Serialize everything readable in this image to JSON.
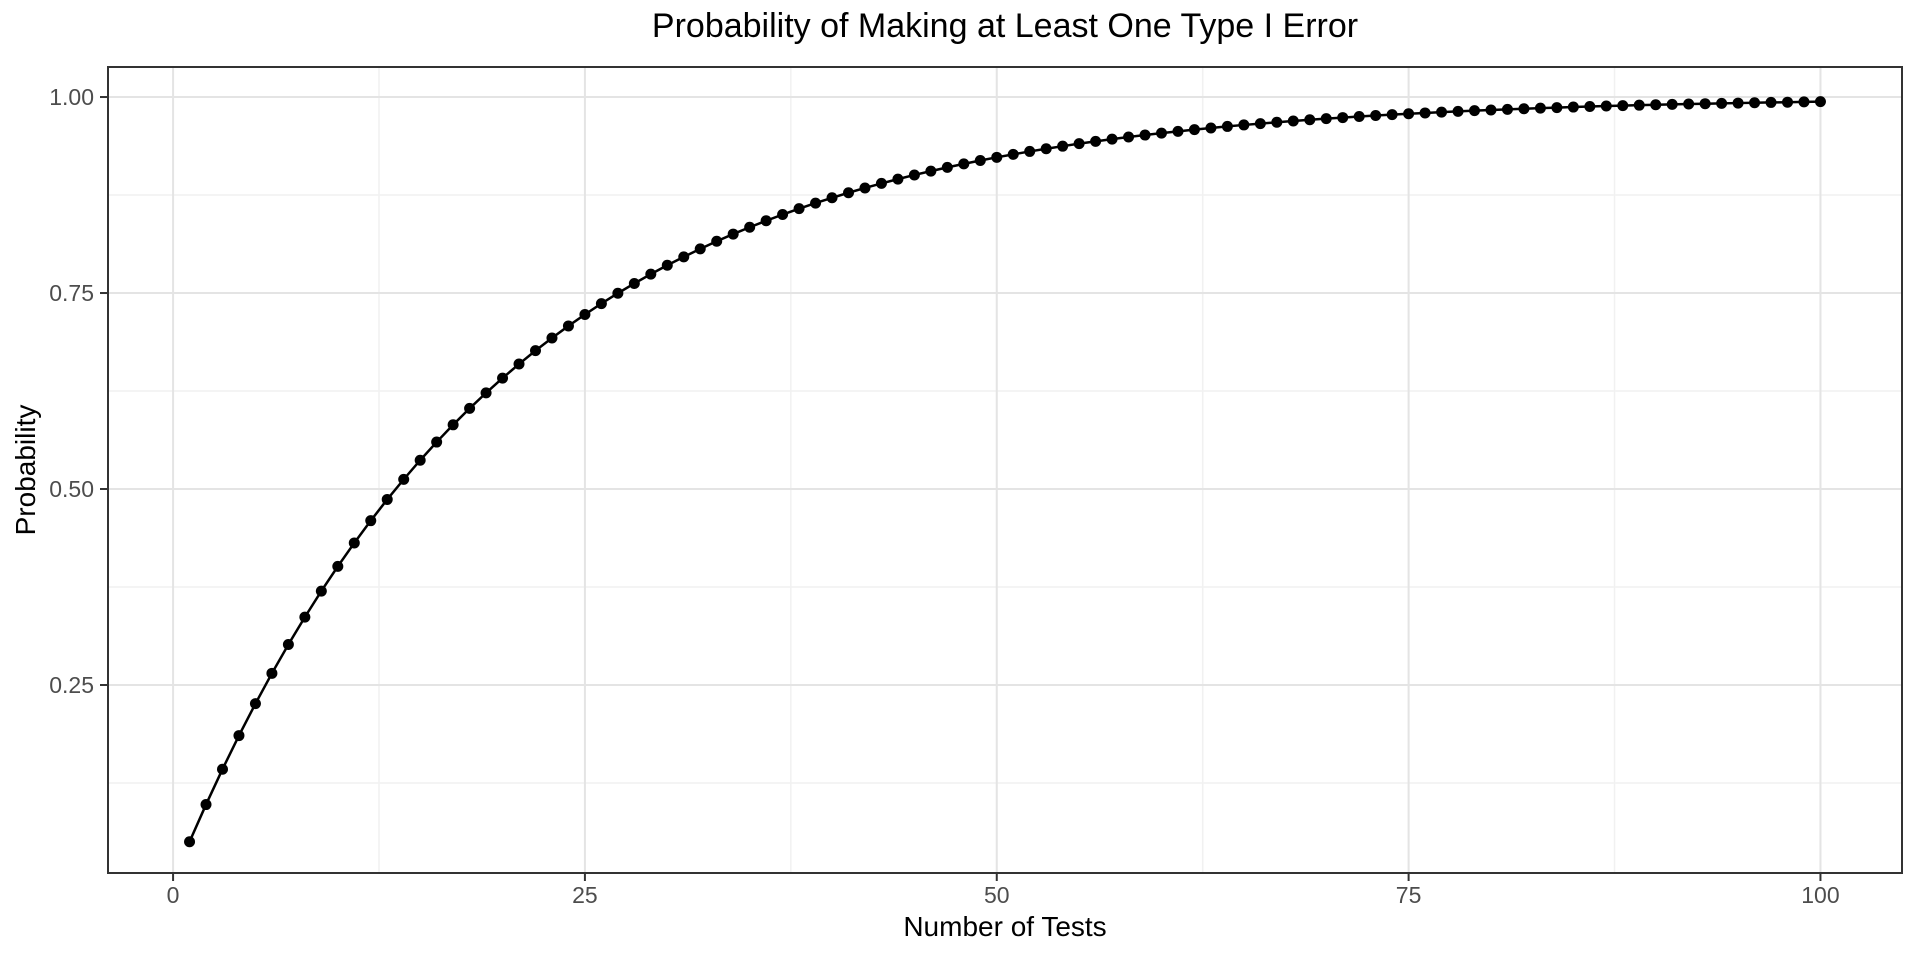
{
  "page": {
    "background_color": "#FFFFFF"
  },
  "chart_data": {
    "type": "line",
    "title": "Probability of Making at Least One Type I Error",
    "xlabel": "Number of Tests",
    "ylabel": "Probability",
    "legend": "none",
    "grid": {
      "major": true,
      "minor": true
    },
    "x_axis": {
      "ticks": [
        0,
        25,
        50,
        75,
        100
      ],
      "tick_labels": [
        "0",
        "25",
        "50",
        "75",
        "100"
      ],
      "minor_gridlines": [
        12.5,
        37.5,
        62.5,
        87.5
      ],
      "range": [
        -3.95,
        104.95
      ]
    },
    "y_axis": {
      "ticks": [
        0.25,
        0.5,
        0.75,
        1.0
      ],
      "tick_labels": [
        "0.25",
        "0.50",
        "0.75",
        "1.00"
      ],
      "minor_gridlines": [
        0.125,
        0.375,
        0.625,
        0.875
      ],
      "range": [
        0.0102,
        1.0383
      ]
    },
    "series": [
      {
        "name": "series-1",
        "marker": "filled-circle",
        "x": [
          1,
          2,
          3,
          4,
          5,
          6,
          7,
          8,
          9,
          10,
          11,
          12,
          13,
          14,
          15,
          16,
          17,
          18,
          19,
          20,
          21,
          22,
          23,
          24,
          25,
          26,
          27,
          28,
          29,
          30,
          31,
          32,
          33,
          34,
          35,
          36,
          37,
          38,
          39,
          40,
          41,
          42,
          43,
          44,
          45,
          46,
          47,
          48,
          49,
          50,
          51,
          52,
          53,
          54,
          55,
          56,
          57,
          58,
          59,
          60,
          61,
          62,
          63,
          64,
          65,
          66,
          67,
          68,
          69,
          70,
          71,
          72,
          73,
          74,
          75,
          76,
          77,
          78,
          79,
          80,
          81,
          82,
          83,
          84,
          85,
          86,
          87,
          88,
          89,
          90,
          91,
          92,
          93,
          94,
          95,
          96,
          97,
          98,
          99,
          100
        ],
        "y": [
          0.05,
          0.0975,
          0.1426,
          0.1855,
          0.2262,
          0.2649,
          0.3017,
          0.3366,
          0.3698,
          0.4013,
          0.4312,
          0.4596,
          0.4867,
          0.5123,
          0.5367,
          0.5599,
          0.5819,
          0.6028,
          0.6226,
          0.6415,
          0.6594,
          0.6765,
          0.6926,
          0.708,
          0.7226,
          0.7365,
          0.7497,
          0.7622,
          0.7741,
          0.7854,
          0.7961,
          0.8063,
          0.816,
          0.8252,
          0.8339,
          0.8422,
          0.8501,
          0.8576,
          0.8647,
          0.8715,
          0.8779,
          0.884,
          0.8898,
          0.8953,
          0.9006,
          0.9055,
          0.9103,
          0.9147,
          0.919,
          0.9231,
          0.9269,
          0.9306,
          0.934,
          0.9373,
          0.9405,
          0.9434,
          0.9463,
          0.949,
          0.9515,
          0.9539,
          0.9562,
          0.9584,
          0.9605,
          0.9625,
          0.9644,
          0.9661,
          0.9678,
          0.9694,
          0.971,
          0.9724,
          0.9738,
          0.9751,
          0.9764,
          0.9775,
          0.9787,
          0.9797,
          0.9807,
          0.9817,
          0.9826,
          0.9835,
          0.9843,
          0.9851,
          0.9858,
          0.9865,
          0.9872,
          0.9879,
          0.9885,
          0.989,
          0.9896,
          0.9901,
          0.9906,
          0.9911,
          0.9915,
          0.9919,
          0.9923,
          0.9927,
          0.9931,
          0.9934,
          0.9938,
          0.9941
        ]
      }
    ]
  },
  "style": {
    "line_color": "#000000",
    "point_color": "#000000",
    "grid_major_color": "#E4E4E4",
    "grid_minor_color": "#F1F1F1",
    "panel_border_color": "#333333",
    "tick_color": "#333333",
    "tick_label_color": "#4D4D4D",
    "title_color": "#000000",
    "axis_title_color": "#000000"
  }
}
